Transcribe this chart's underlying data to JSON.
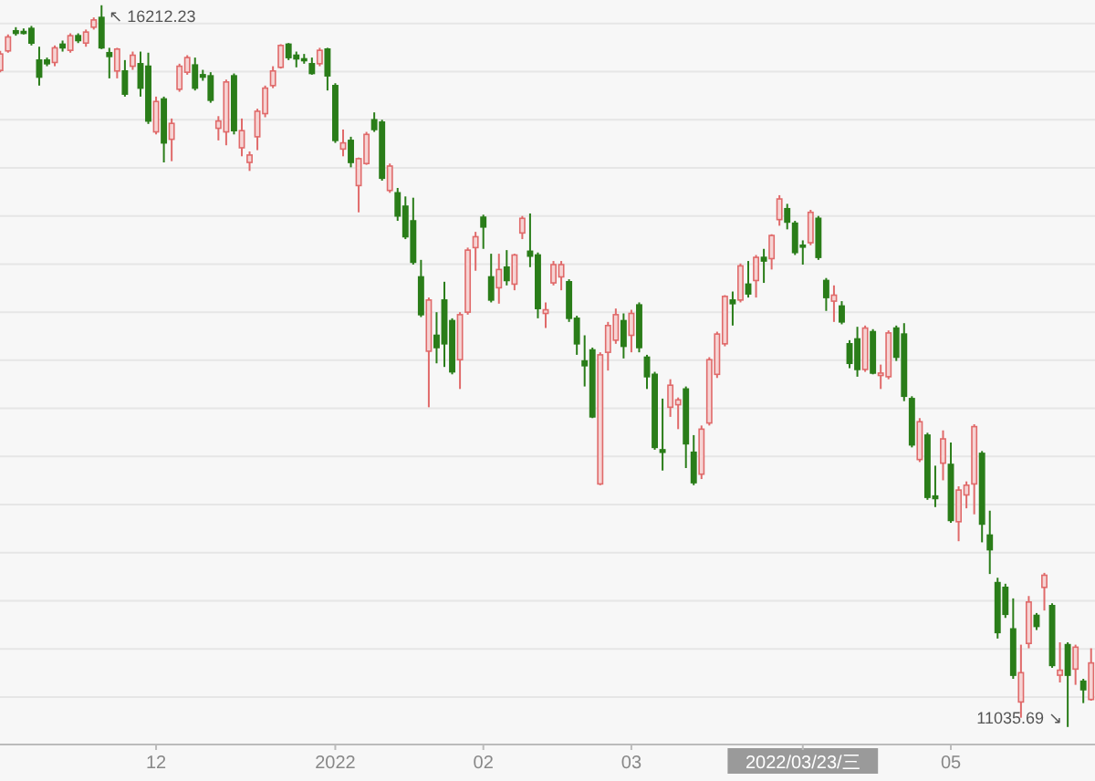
{
  "chart_data": {
    "type": "candlestick",
    "categories": [
      null,
      null,
      null,
      null,
      null,
      null,
      null,
      null,
      null,
      null,
      null,
      null,
      null,
      null,
      null,
      null,
      null,
      null,
      null,
      null,
      "12",
      null,
      null,
      null,
      null,
      null,
      null,
      null,
      null,
      null,
      null,
      null,
      null,
      null,
      null,
      null,
      null,
      null,
      null,
      null,
      null,
      null,
      null,
      "2022",
      null,
      null,
      null,
      null,
      null,
      null,
      null,
      null,
      null,
      null,
      null,
      null,
      null,
      null,
      null,
      null,
      null,
      null,
      "02",
      null,
      null,
      null,
      null,
      null,
      null,
      null,
      null,
      null,
      null,
      null,
      null,
      null,
      null,
      null,
      null,
      null,
      null,
      "03",
      null,
      null,
      null,
      null,
      null,
      null,
      null,
      null,
      null,
      null,
      null,
      null,
      null,
      null,
      null,
      null,
      null,
      null,
      null,
      null,
      null,
      "2022/03/23/三",
      null,
      null,
      null,
      null,
      null,
      null,
      null,
      null,
      null,
      null,
      null,
      null,
      null,
      null,
      null,
      null,
      null,
      null,
      "05",
      null,
      null,
      null,
      null,
      null,
      null,
      null,
      null,
      null,
      null,
      null,
      null,
      null,
      null,
      null,
      null,
      null,
      null
    ],
    "ohlc": [
      [
        15745,
        15885,
        15732,
        15863
      ],
      [
        15885,
        16003,
        15872,
        15985
      ],
      [
        16029,
        16055,
        15994,
        16011
      ],
      [
        16024,
        16046,
        16003,
        16011
      ],
      [
        16046,
        16064,
        15924,
        15941
      ],
      [
        15819,
        15915,
        15636,
        15697
      ],
      [
        15819,
        15837,
        15775,
        15793
      ],
      [
        15802,
        15924,
        15775,
        15907
      ],
      [
        15933,
        15959,
        15880,
        15907
      ],
      [
        15889,
        16011,
        15872,
        15994
      ],
      [
        15994,
        16011,
        15941,
        15959
      ],
      [
        15941,
        16038,
        15915,
        16020
      ],
      [
        16055,
        16125,
        16038,
        16107
      ],
      [
        16125,
        16212.23,
        15898,
        15907
      ],
      [
        15872,
        15907,
        15688,
        15845
      ],
      [
        15741,
        15907,
        15688,
        15898
      ],
      [
        15741,
        15819,
        15557,
        15575
      ],
      [
        15775,
        15880,
        15749,
        15854
      ],
      [
        15793,
        15880,
        15557,
        15618
      ],
      [
        15775,
        15872,
        15361,
        15382
      ],
      [
        15304,
        15557,
        15286,
        15522
      ],
      [
        15540,
        15557,
        15085,
        15225
      ],
      [
        15251,
        15400,
        15094,
        15365
      ],
      [
        15610,
        15793,
        15592,
        15775
      ],
      [
        15732,
        15854,
        15714,
        15837
      ],
      [
        15784,
        15837,
        15601,
        15618
      ],
      [
        15714,
        15749,
        15671,
        15697
      ],
      [
        15706,
        15732,
        15513,
        15531
      ],
      [
        15330,
        15417,
        15243,
        15382
      ],
      [
        15304,
        15679,
        15208,
        15662
      ],
      [
        15706,
        15723,
        15286,
        15313
      ],
      [
        15190,
        15400,
        15129,
        15313
      ],
      [
        15085,
        15164,
        15024,
        15138
      ],
      [
        15269,
        15470,
        15173,
        15452
      ],
      [
        15435,
        15636,
        15409,
        15618
      ],
      [
        15636,
        15775,
        15618,
        15741
      ],
      [
        15767,
        15933,
        15758,
        15924
      ],
      [
        15933,
        15941,
        15819,
        15837
      ],
      [
        15854,
        15880,
        15767,
        15828
      ],
      [
        15828,
        15863,
        15793,
        15819
      ],
      [
        15793,
        15837,
        15714,
        15723
      ],
      [
        15793,
        15907,
        15775,
        15889
      ],
      [
        15898,
        15907,
        15601,
        15706
      ],
      [
        15636,
        15653,
        15225,
        15243
      ],
      [
        15181,
        15321,
        15129,
        15225
      ],
      [
        15243,
        15269,
        15050,
        15085
      ],
      [
        14919,
        15120,
        14727,
        15112
      ],
      [
        15077,
        15304,
        15068,
        15286
      ],
      [
        15391,
        15444,
        15304,
        15321
      ],
      [
        15374,
        15391,
        14954,
        14972
      ],
      [
        14884,
        15077,
        14867,
        15059
      ],
      [
        14867,
        14902,
        14666,
        14701
      ],
      [
        14771,
        14841,
        14535,
        14552
      ],
      [
        14666,
        14832,
        14352,
        14369
      ],
      [
        14264,
        14386,
        13976,
        13993
      ],
      [
        13731,
        14116,
        13329,
        14098
      ],
      [
        13845,
        14011,
        13644,
        13757
      ],
      [
        14098,
        14229,
        13618,
        13784
      ],
      [
        13950,
        13967,
        13565,
        13583
      ],
      [
        13670,
        14011,
        13460,
        13993
      ],
      [
        14011,
        14474,
        13993,
        14456
      ],
      [
        14474,
        14587,
        14308,
        14552
      ],
      [
        14692,
        14710,
        14465,
        14622
      ],
      [
        14264,
        14430,
        14081,
        14098
      ],
      [
        14186,
        14430,
        14072,
        14317
      ],
      [
        14334,
        14456,
        14203,
        14238
      ],
      [
        14212,
        14430,
        14168,
        14421
      ],
      [
        14579,
        14701,
        14535,
        14684
      ],
      [
        14448,
        14719,
        14334,
        14413
      ],
      [
        14421,
        14439,
        13967,
        14037
      ],
      [
        14002,
        14081,
        13897,
        14028
      ],
      [
        14221,
        14378,
        14203,
        14352
      ],
      [
        14264,
        14378,
        14168,
        14352
      ],
      [
        14229,
        14247,
        13941,
        13967
      ],
      [
        13967,
        13985,
        13705,
        13784
      ],
      [
        13661,
        13845,
        13478,
        13627
      ],
      [
        13740,
        13757,
        13251,
        13260
      ],
      [
        12779,
        13723,
        12770,
        13705
      ],
      [
        13723,
        13941,
        13592,
        13915
      ],
      [
        13810,
        14037,
        13784,
        13993
      ],
      [
        13950,
        14002,
        13679,
        13766
      ],
      [
        13845,
        14028,
        13723,
        14002
      ],
      [
        14063,
        14081,
        13723,
        13757
      ],
      [
        13688,
        13705,
        13460,
        13548
      ],
      [
        13565,
        13583,
        13024,
        13041
      ],
      [
        13024,
        13391,
        12875,
        13006
      ],
      [
        13329,
        13530,
        13260,
        13487
      ],
      [
        13347,
        13399,
        13172,
        13382
      ],
      [
        13460,
        13478,
        12893,
        13067
      ],
      [
        13006,
        13129,
        12770,
        12788
      ],
      [
        12849,
        13198,
        12814,
        13172
      ],
      [
        13216,
        13688,
        13198,
        13670
      ],
      [
        13565,
        13871,
        13539,
        13854
      ],
      [
        13784,
        14133,
        13766,
        14124
      ],
      [
        14098,
        14159,
        13915,
        14072
      ],
      [
        14098,
        14360,
        14081,
        14343
      ],
      [
        14212,
        14378,
        14116,
        14142
      ],
      [
        14238,
        14421,
        14116,
        14404
      ],
      [
        14404,
        14465,
        14221,
        14378
      ],
      [
        14395,
        14570,
        14317,
        14561
      ],
      [
        14675,
        14850,
        14631,
        14823
      ],
      [
        14753,
        14788,
        14605,
        14657
      ],
      [
        14649,
        14666,
        14421,
        14439
      ],
      [
        14491,
        14526,
        14352,
        14483
      ],
      [
        14509,
        14745,
        14491,
        14727
      ],
      [
        14684,
        14701,
        14386,
        14404
      ],
      [
        14238,
        14256,
        14020,
        14116
      ],
      [
        14090,
        14203,
        13941,
        14133
      ],
      [
        14055,
        14090,
        13924,
        13941
      ],
      [
        13784,
        13810,
        13609,
        13644
      ],
      [
        13819,
        13906,
        13548,
        13600
      ],
      [
        13600,
        13915,
        13583,
        13897
      ],
      [
        13871,
        13889,
        13565,
        13574
      ],
      [
        13557,
        13635,
        13460,
        13574
      ],
      [
        13548,
        13880,
        13530,
        13862
      ],
      [
        13897,
        13915,
        13661,
        13688
      ],
      [
        13854,
        13932,
        13373,
        13408
      ],
      [
        13391,
        13408,
        13041,
        13059
      ],
      [
        12954,
        13251,
        12936,
        13225
      ],
      [
        13129,
        13146,
        12665,
        12683
      ],
      [
        12692,
        12910,
        12613,
        12674
      ],
      [
        12928,
        13163,
        12805,
        13102
      ],
      [
        12919,
        13076,
        12500,
        12517
      ],
      [
        12508,
        12762,
        12368,
        12735
      ],
      [
        12700,
        12797,
        12604,
        12770
      ],
      [
        12779,
        13207,
        12561,
        13190
      ],
      [
        12998,
        13015,
        12360,
        12491
      ],
      [
        12412,
        12587,
        12133,
        12307
      ],
      [
        12071,
        12106,
        11670,
        11713
      ],
      [
        12037,
        12063,
        11818,
        11844
      ],
      [
        11739,
        11958,
        11381,
        11407
      ],
      [
        11215,
        11626,
        11102,
        11425
      ],
      [
        11635,
        11975,
        11600,
        11932
      ],
      [
        11836,
        11853,
        11731,
        11757
      ],
      [
        12037,
        12141,
        11871,
        12124
      ],
      [
        11906,
        11923,
        11460,
        11477
      ],
      [
        11407,
        11643,
        11355,
        11443
      ],
      [
        11626,
        11643,
        11035.69,
        11407
      ],
      [
        11451,
        11626,
        11338,
        11608
      ],
      [
        11364,
        11381,
        11207,
        11303
      ],
      [
        11233,
        11600,
        11224,
        11495
      ]
    ],
    "ylim": [
      10910,
      16250
    ],
    "yticks": [
      {
        "value": 16081,
        "label": null
      },
      {
        "value": 15736,
        "label": null
      },
      {
        "value": 15391,
        "label": null
      },
      {
        "value": 15046,
        "label": null
      },
      {
        "value": 14701,
        "label": null
      },
      {
        "value": 14356,
        "label": null
      },
      {
        "value": 14011,
        "label": null
      },
      {
        "value": 13666,
        "label": null
      },
      {
        "value": 13321,
        "label": null
      },
      {
        "value": 12976,
        "label": null
      },
      {
        "value": 12631,
        "label": null
      },
      {
        "value": 12286,
        "label": null
      },
      {
        "value": 11941,
        "label": null
      },
      {
        "value": 11596,
        "label": null
      },
      {
        "value": 11251,
        "label": null
      }
    ],
    "grid": "y",
    "tick_labels": "x",
    "annotations": [
      "↖ 16212.23",
      "11035.69 ↘"
    ]
  }
}
